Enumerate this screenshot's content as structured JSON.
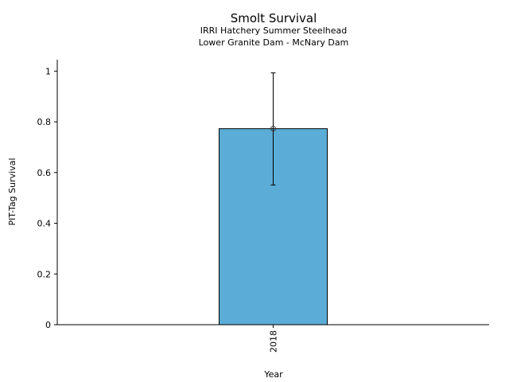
{
  "chart_data": {
    "type": "bar",
    "title": "Smolt Survival",
    "subtitle_lines": [
      "IRRI Hatchery Summer Steelhead",
      "Lower Granite Dam - McNary Dam"
    ],
    "xlabel": "Year",
    "ylabel": "PIT-Tag Survival",
    "categories": [
      "2018"
    ],
    "values": [
      0.773
    ],
    "error_lower": [
      0.551
    ],
    "error_upper": [
      0.993
    ],
    "ylim": [
      0,
      1.045
    ],
    "yticks": [
      0,
      0.2,
      0.4,
      0.6,
      0.8,
      1
    ],
    "ytick_labels": [
      "0",
      "0.2",
      "0.4",
      "0.6",
      "0.8",
      "1"
    ],
    "grid": false,
    "bar_color": "#5BACD6",
    "xtick_rotation": "vertical"
  }
}
